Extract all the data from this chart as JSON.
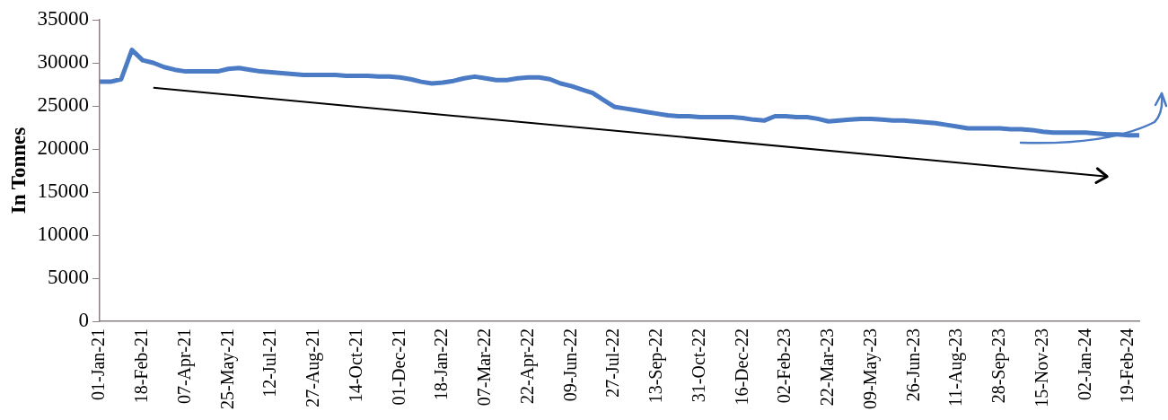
{
  "chart_data": {
    "type": "line",
    "ylabel": "In Tonnes",
    "categories": [
      "01-Jan-21",
      null,
      null,
      null,
      "18-Feb-21",
      null,
      null,
      null,
      "07-Apr-21",
      null,
      null,
      null,
      "25-May-21",
      null,
      null,
      null,
      "12-Jul-21",
      null,
      null,
      null,
      "27-Aug-21",
      null,
      null,
      null,
      "14-Oct-21",
      null,
      null,
      null,
      "01-Dec-21",
      null,
      null,
      null,
      "18-Jan-22",
      null,
      null,
      null,
      "07-Mar-22",
      null,
      null,
      null,
      "22-Apr-22",
      null,
      null,
      null,
      "09-Jun-22",
      null,
      null,
      null,
      "27-Jul-22",
      null,
      null,
      null,
      "13-Sep-22",
      null,
      null,
      null,
      "31-Oct-22",
      null,
      null,
      null,
      "16-Dec-22",
      null,
      null,
      null,
      "02-Feb-23",
      null,
      null,
      null,
      "22-Mar-23",
      null,
      null,
      null,
      "09-May-23",
      null,
      null,
      null,
      "26-Jun-23",
      null,
      null,
      null,
      "11-Aug-23",
      null,
      null,
      null,
      "28-Sep-23",
      null,
      null,
      null,
      "15-Nov-23",
      null,
      null,
      null,
      "02-Jan-24",
      null,
      null,
      null,
      "19-Feb-24",
      null
    ],
    "series": [
      {
        "color": "#4a7bc4",
        "values": [
          27800,
          27800,
          28100,
          31500,
          30300,
          30000,
          29500,
          29200,
          29000,
          29000,
          29000,
          29000,
          29300,
          29400,
          29200,
          29000,
          28900,
          28800,
          28700,
          28600,
          28600,
          28600,
          28600,
          28500,
          28500,
          28500,
          28400,
          28400,
          28300,
          28100,
          27800,
          27600,
          27700,
          27900,
          28200,
          28400,
          28200,
          28000,
          28000,
          28200,
          28300,
          28300,
          28100,
          27600,
          27300,
          26900,
          26500,
          25700,
          24900,
          24700,
          24500,
          24300,
          24100,
          23900,
          23800,
          23800,
          23700,
          23700,
          23700,
          23700,
          23600,
          23400,
          23300,
          23800,
          23800,
          23700,
          23700,
          23500,
          23200,
          23300,
          23400,
          23500,
          23500,
          23400,
          23300,
          23300,
          23200,
          23100,
          23000,
          22800,
          22600,
          22400,
          22400,
          22400,
          22400,
          22300,
          22300,
          22200,
          22000,
          21900,
          21900,
          21900,
          21900,
          21800,
          21700,
          21700,
          21600,
          21600
        ]
      },
      {
        "type": "line",
        "color": "#000000",
        "values": [
          null,
          null,
          null,
          null,
          null,
          27100,
          null,
          null,
          null,
          null,
          null,
          null,
          null,
          null,
          null,
          null,
          null,
          null,
          null,
          null,
          null,
          null,
          null,
          null,
          null,
          null,
          null,
          null,
          null,
          null,
          null,
          null,
          null,
          null,
          null,
          null,
          null,
          null,
          null,
          null,
          null,
          null,
          null,
          null,
          null,
          null,
          null,
          null,
          null,
          null,
          null,
          null,
          null,
          null,
          null,
          null,
          null,
          null,
          null,
          null,
          null,
          null,
          null,
          null,
          null,
          null,
          null,
          null,
          null,
          null,
          null,
          null,
          null,
          null,
          null,
          null,
          null,
          null,
          null,
          null,
          null,
          null,
          null,
          null,
          null,
          null,
          null,
          null,
          null,
          null,
          null,
          null,
          null,
          null,
          16800,
          null,
          null,
          null
        ]
      }
    ],
    "ylim": [
      0,
      35000
    ],
    "yticks": [
      0,
      5000,
      10000,
      15000,
      20000,
      25000,
      30000,
      35000
    ]
  }
}
